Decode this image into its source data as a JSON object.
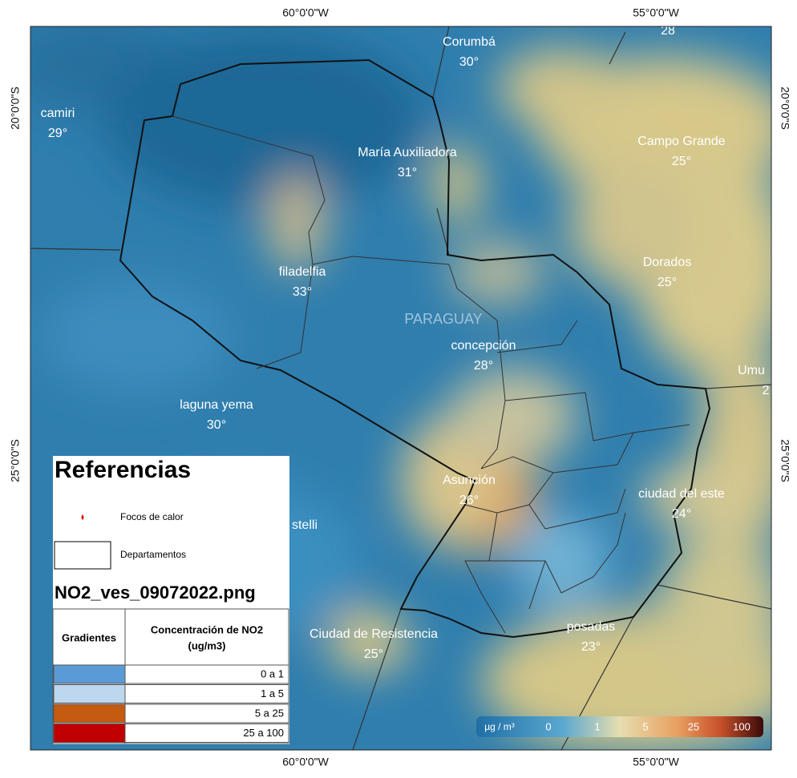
{
  "axes": {
    "top_left": "60°0'0\"W",
    "top_right": "55°0'0\"W",
    "bottom_left": "60°0'0\"W",
    "bottom_right": "55°0'0\"W",
    "left_top": "20°0'0\"S",
    "left_bottom": "25°0'0\"S",
    "right_top": "20°0'0\"S",
    "right_bottom": "25°0'0\"S"
  },
  "map": {
    "country": "PARAGUAY",
    "cities": [
      {
        "name": "Corumbá",
        "temp": "30°"
      },
      {
        "temp": "28"
      },
      {
        "name": "camiri",
        "temp": "29°"
      },
      {
        "name": "María Auxiliadora",
        "temp": "31°"
      },
      {
        "name": "Campo Grande",
        "temp": "25°"
      },
      {
        "name": "filadelfia",
        "temp": "33°"
      },
      {
        "name": "Dorados",
        "temp": "25°"
      },
      {
        "name": "concepción",
        "temp": "28°"
      },
      {
        "name": "Umu",
        "temp": "2"
      },
      {
        "name": "laguna yema",
        "temp": "30°"
      },
      {
        "name": "Asunción",
        "temp": "26°"
      },
      {
        "name": "ciudad del este",
        "temp": "24°"
      },
      {
        "name": "stelli"
      },
      {
        "name": "Ciudad de Resistencia",
        "temp": "25°"
      },
      {
        "name": "posadas",
        "temp": "23°"
      }
    ]
  },
  "legend": {
    "title": "Referencias",
    "hotspots": "Focos de calor",
    "departments": "Departamentos",
    "image_title": "NO2_ves_09072022.png",
    "col_gradients": "Gradientes",
    "col_concentration": "Concentración de NO2",
    "col_unit": "(ug/m3)",
    "rows": [
      {
        "range": "0 a 1",
        "color": "#5b9bd5"
      },
      {
        "range": "1 a 5",
        "color": "#bdd7ee"
      },
      {
        "range": "5 a 25",
        "color": "#c55a11"
      },
      {
        "range": "25 a 100",
        "color": "#c00000"
      }
    ]
  },
  "colorbar": {
    "unit": "µg / m³",
    "ticks": [
      0,
      1,
      5,
      25,
      100
    ]
  }
}
